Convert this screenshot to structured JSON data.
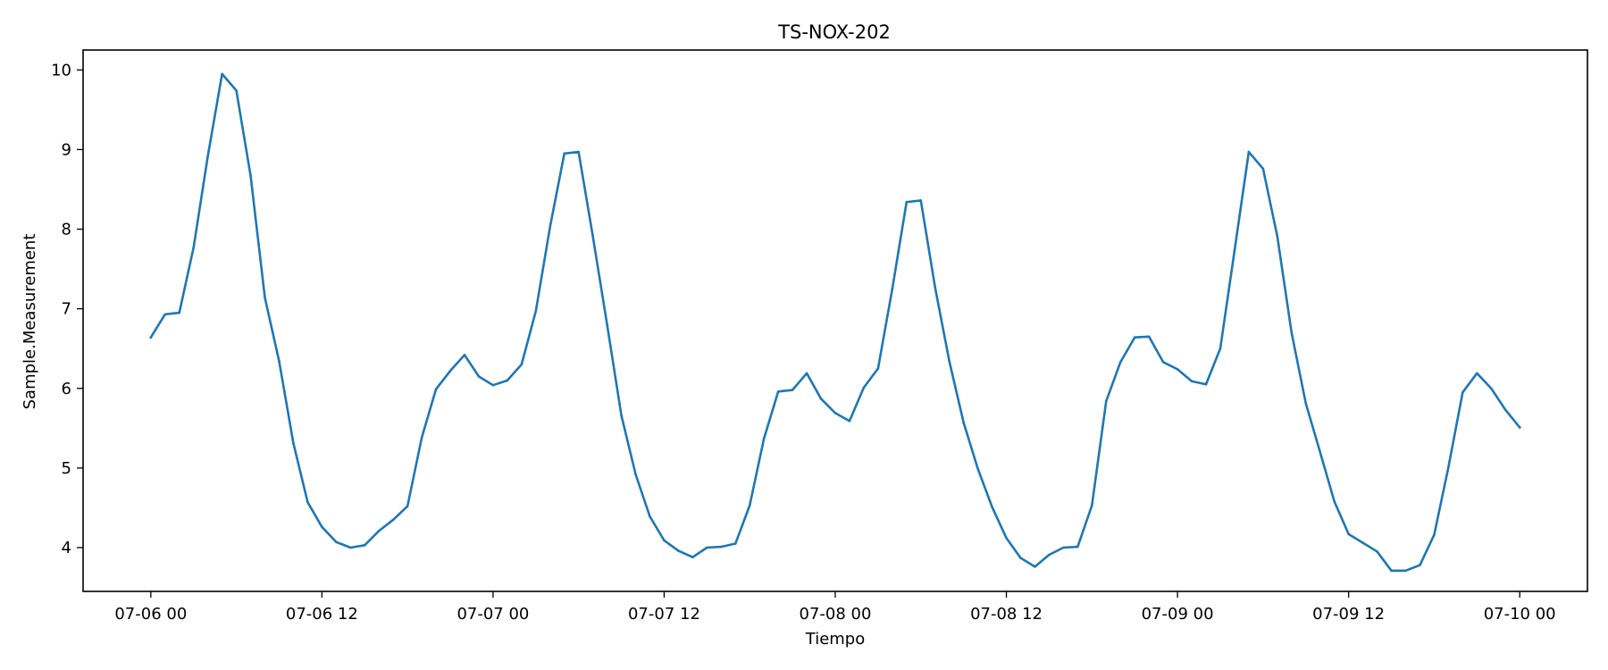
{
  "chart_data": {
    "type": "line",
    "title": "TS-NOX-202",
    "xlabel": "Tiempo",
    "ylabel": "Sample.Measurement",
    "ylim": [
      3.45,
      10.25
    ],
    "xlim": [
      "2023-07-05T19:15",
      "2023-07-10T04:45"
    ],
    "x_tick_labels": [
      "07-06 00",
      "07-06 12",
      "07-07 00",
      "07-07 12",
      "07-08 00",
      "07-08 12",
      "07-09 00",
      "07-09 12",
      "07-10 00"
    ],
    "x_ticks": [
      "2023-07-06T00:00",
      "2023-07-06T12:00",
      "2023-07-07T00:00",
      "2023-07-07T12:00",
      "2023-07-08T00:00",
      "2023-07-08T12:00",
      "2023-07-09T00:00",
      "2023-07-09T12:00",
      "2023-07-10T00:00"
    ],
    "y_ticks": [
      4,
      5,
      6,
      7,
      8,
      9,
      10
    ],
    "grid": false,
    "line_color": "#1f77b4",
    "series": [
      {
        "x": [
          "2023-07-06T00:00",
          "2023-07-06T01:00",
          "2023-07-06T02:00",
          "2023-07-06T03:00",
          "2023-07-06T04:00",
          "2023-07-06T05:00",
          "2023-07-06T06:00",
          "2023-07-06T07:00",
          "2023-07-06T08:00",
          "2023-07-06T09:00",
          "2023-07-06T10:00",
          "2023-07-06T11:00",
          "2023-07-06T12:00",
          "2023-07-06T13:00",
          "2023-07-06T14:00",
          "2023-07-06T15:00",
          "2023-07-06T16:00",
          "2023-07-06T17:00",
          "2023-07-06T18:00",
          "2023-07-06T19:00",
          "2023-07-06T20:00",
          "2023-07-06T21:00",
          "2023-07-06T22:00",
          "2023-07-06T23:00",
          "2023-07-07T00:00",
          "2023-07-07T01:00",
          "2023-07-07T02:00",
          "2023-07-07T03:00",
          "2023-07-07T04:00",
          "2023-07-07T05:00",
          "2023-07-07T06:00",
          "2023-07-07T07:00",
          "2023-07-07T08:00",
          "2023-07-07T09:00",
          "2023-07-07T10:00",
          "2023-07-07T11:00",
          "2023-07-07T12:00",
          "2023-07-07T13:00",
          "2023-07-07T14:00",
          "2023-07-07T15:00",
          "2023-07-07T16:00",
          "2023-07-07T17:00",
          "2023-07-07T18:00",
          "2023-07-07T19:00",
          "2023-07-07T20:00",
          "2023-07-07T21:00",
          "2023-07-07T22:00",
          "2023-07-07T23:00",
          "2023-07-08T00:00",
          "2023-07-08T01:00",
          "2023-07-08T02:00",
          "2023-07-08T03:00",
          "2023-07-08T04:00",
          "2023-07-08T05:00",
          "2023-07-08T06:00",
          "2023-07-08T07:00",
          "2023-07-08T08:00",
          "2023-07-08T09:00",
          "2023-07-08T10:00",
          "2023-07-08T11:00",
          "2023-07-08T12:00",
          "2023-07-08T13:00",
          "2023-07-08T14:00",
          "2023-07-08T15:00",
          "2023-07-08T16:00",
          "2023-07-08T17:00",
          "2023-07-08T18:00",
          "2023-07-08T19:00",
          "2023-07-08T20:00",
          "2023-07-08T21:00",
          "2023-07-08T22:00",
          "2023-07-08T23:00",
          "2023-07-09T00:00",
          "2023-07-09T01:00",
          "2023-07-09T02:00",
          "2023-07-09T03:00",
          "2023-07-09T04:00",
          "2023-07-09T05:00",
          "2023-07-09T06:00",
          "2023-07-09T07:00",
          "2023-07-09T08:00",
          "2023-07-09T09:00",
          "2023-07-09T10:00",
          "2023-07-09T11:00",
          "2023-07-09T12:00",
          "2023-07-09T13:00",
          "2023-07-09T14:00",
          "2023-07-09T15:00",
          "2023-07-09T16:00",
          "2023-07-09T17:00",
          "2023-07-09T18:00",
          "2023-07-09T19:00",
          "2023-07-09T20:00",
          "2023-07-09T21:00",
          "2023-07-09T22:00",
          "2023-07-09T23:00",
          "2023-07-10T00:00"
        ],
        "y": [
          6.64,
          6.93,
          6.95,
          7.77,
          8.92,
          9.95,
          9.74,
          8.67,
          7.14,
          6.34,
          5.31,
          4.57,
          4.26,
          4.07,
          4.0,
          4.03,
          4.21,
          4.35,
          4.52,
          5.38,
          5.99,
          6.22,
          6.42,
          6.15,
          6.04,
          6.1,
          6.3,
          6.97,
          8.03,
          8.95,
          8.97,
          7.91,
          6.8,
          5.66,
          4.92,
          4.39,
          4.09,
          3.96,
          3.88,
          4.0,
          4.01,
          4.05,
          4.53,
          5.37,
          5.96,
          5.98,
          6.19,
          5.87,
          5.69,
          5.59,
          6.01,
          6.25,
          7.25,
          8.34,
          8.36,
          7.27,
          6.34,
          5.57,
          4.99,
          4.51,
          4.12,
          3.87,
          3.76,
          3.91,
          4.0,
          4.01,
          4.53,
          5.84,
          6.33,
          6.64,
          6.65,
          6.33,
          6.24,
          6.09,
          6.05,
          6.5,
          7.73,
          8.97,
          8.76,
          7.91,
          6.7,
          5.81,
          5.2,
          4.58,
          4.17,
          4.06,
          3.95,
          3.71,
          3.71,
          3.78,
          4.16,
          5.01,
          5.95,
          6.19,
          6.0,
          5.73,
          5.51
        ]
      }
    ]
  }
}
